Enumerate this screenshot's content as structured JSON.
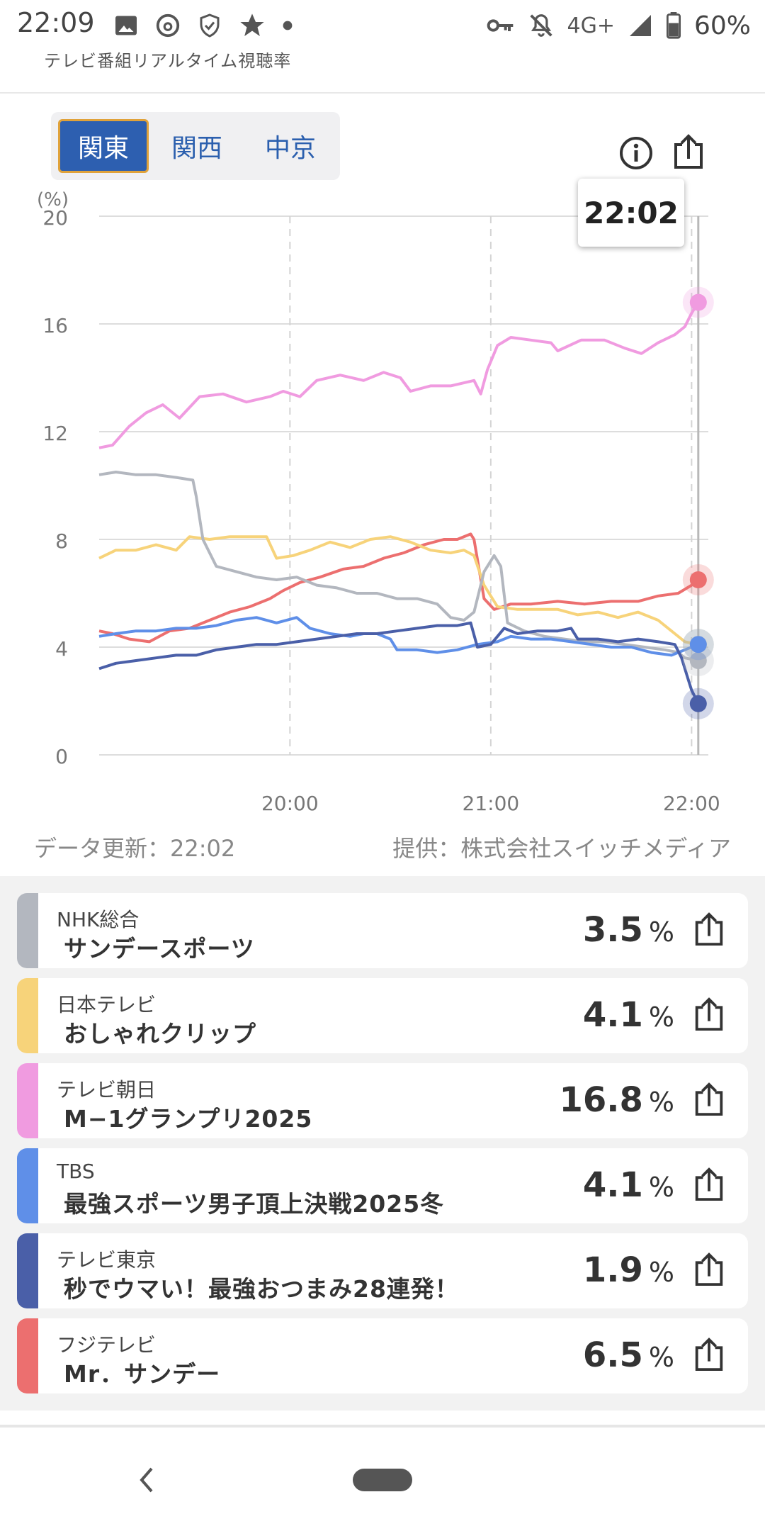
{
  "status_bar": {
    "time": "22:09",
    "icons": [
      "image-icon",
      "threads-icon",
      "shield-icon",
      "star-icon",
      "dot-icon"
    ],
    "network": "4G+",
    "battery": "60%"
  },
  "header": {
    "title": "テレビ番組リアルタイム視聴率"
  },
  "regions": {
    "items": [
      "関東",
      "関西",
      "中京"
    ],
    "selected": "関東"
  },
  "tooltip": {
    "time": "22:02"
  },
  "chart_data": {
    "type": "line",
    "ylabel": "(%)",
    "ylim": [
      0,
      20
    ],
    "y_ticks": [
      "0",
      "4",
      "8",
      "12",
      "16",
      "20"
    ],
    "x_ticks": [
      "20:00",
      "21:00",
      "22:00"
    ],
    "x_domain": [
      "19:03",
      "22:05"
    ],
    "grid": true,
    "series": [
      {
        "name": "テレビ朝日",
        "color": "#f09be0",
        "points": [
          [
            "19:03",
            11.4
          ],
          [
            "19:07",
            11.5
          ],
          [
            "19:12",
            12.2
          ],
          [
            "19:17",
            12.7
          ],
          [
            "19:22",
            13.0
          ],
          [
            "19:27",
            12.5
          ],
          [
            "19:33",
            13.3
          ],
          [
            "19:40",
            13.4
          ],
          [
            "19:47",
            13.1
          ],
          [
            "19:54",
            13.3
          ],
          [
            "19:58",
            13.5
          ],
          [
            "20:03",
            13.3
          ],
          [
            "20:08",
            13.9
          ],
          [
            "20:15",
            14.1
          ],
          [
            "20:22",
            13.9
          ],
          [
            "20:28",
            14.2
          ],
          [
            "20:33",
            14.0
          ],
          [
            "20:36",
            13.5
          ],
          [
            "20:42",
            13.7
          ],
          [
            "20:48",
            13.7
          ],
          [
            "20:55",
            13.9
          ],
          [
            "20:57",
            13.4
          ],
          [
            "20:59",
            14.3
          ],
          [
            "21:02",
            15.2
          ],
          [
            "21:06",
            15.5
          ],
          [
            "21:12",
            15.4
          ],
          [
            "21:18",
            15.3
          ],
          [
            "21:20",
            15.0
          ],
          [
            "21:27",
            15.4
          ],
          [
            "21:34",
            15.4
          ],
          [
            "21:40",
            15.1
          ],
          [
            "21:45",
            14.9
          ],
          [
            "21:50",
            15.3
          ],
          [
            "21:55",
            15.6
          ],
          [
            "21:58",
            15.9
          ],
          [
            "22:00",
            16.4
          ],
          [
            "22:02",
            16.8
          ]
        ]
      },
      {
        "name": "フジテレビ",
        "color": "#ec6f6f",
        "points": [
          [
            "19:03",
            4.6
          ],
          [
            "19:07",
            4.5
          ],
          [
            "19:12",
            4.3
          ],
          [
            "19:18",
            4.2
          ],
          [
            "19:24",
            4.6
          ],
          [
            "19:30",
            4.7
          ],
          [
            "19:36",
            5.0
          ],
          [
            "19:42",
            5.3
          ],
          [
            "19:48",
            5.5
          ],
          [
            "19:54",
            5.8
          ],
          [
            "19:58",
            6.1
          ],
          [
            "20:03",
            6.4
          ],
          [
            "20:09",
            6.6
          ],
          [
            "20:16",
            6.9
          ],
          [
            "20:22",
            7.0
          ],
          [
            "20:28",
            7.3
          ],
          [
            "20:34",
            7.5
          ],
          [
            "20:40",
            7.8
          ],
          [
            "20:46",
            8.0
          ],
          [
            "20:50",
            8.0
          ],
          [
            "20:54",
            8.2
          ],
          [
            "20:55",
            8.0
          ],
          [
            "20:58",
            5.8
          ],
          [
            "21:01",
            5.4
          ],
          [
            "21:06",
            5.6
          ],
          [
            "21:12",
            5.6
          ],
          [
            "21:20",
            5.7
          ],
          [
            "21:28",
            5.6
          ],
          [
            "21:36",
            5.7
          ],
          [
            "21:44",
            5.7
          ],
          [
            "21:50",
            5.9
          ],
          [
            "21:56",
            6.0
          ],
          [
            "22:00",
            6.3
          ],
          [
            "22:02",
            6.5
          ]
        ]
      },
      {
        "name": "日本テレビ",
        "color": "#f7d37a",
        "points": [
          [
            "19:03",
            7.3
          ],
          [
            "19:08",
            7.6
          ],
          [
            "19:14",
            7.6
          ],
          [
            "19:20",
            7.8
          ],
          [
            "19:26",
            7.6
          ],
          [
            "19:30",
            8.1
          ],
          [
            "19:36",
            8.0
          ],
          [
            "19:42",
            8.1
          ],
          [
            "19:48",
            8.1
          ],
          [
            "19:53",
            8.1
          ],
          [
            "19:56",
            7.3
          ],
          [
            "20:01",
            7.4
          ],
          [
            "20:06",
            7.6
          ],
          [
            "20:12",
            7.9
          ],
          [
            "20:18",
            7.7
          ],
          [
            "20:24",
            8.0
          ],
          [
            "20:30",
            8.1
          ],
          [
            "20:36",
            7.9
          ],
          [
            "20:42",
            7.6
          ],
          [
            "20:48",
            7.5
          ],
          [
            "20:52",
            7.6
          ],
          [
            "20:55",
            7.4
          ],
          [
            "20:58",
            6.3
          ],
          [
            "21:02",
            5.5
          ],
          [
            "21:08",
            5.4
          ],
          [
            "21:14",
            5.4
          ],
          [
            "21:20",
            5.4
          ],
          [
            "21:26",
            5.2
          ],
          [
            "21:32",
            5.3
          ],
          [
            "21:38",
            5.1
          ],
          [
            "21:44",
            5.3
          ],
          [
            "21:50",
            5.0
          ],
          [
            "21:55",
            4.5
          ],
          [
            "21:58",
            4.2
          ],
          [
            "22:02",
            4.1
          ]
        ]
      },
      {
        "name": "NHK総合",
        "color": "#b3b7bf",
        "points": [
          [
            "19:03",
            10.4
          ],
          [
            "19:08",
            10.5
          ],
          [
            "19:14",
            10.4
          ],
          [
            "19:20",
            10.4
          ],
          [
            "19:26",
            10.3
          ],
          [
            "19:31",
            10.2
          ],
          [
            "19:32",
            9.6
          ],
          [
            "19:34",
            8.0
          ],
          [
            "19:38",
            7.0
          ],
          [
            "19:44",
            6.8
          ],
          [
            "19:50",
            6.6
          ],
          [
            "19:56",
            6.5
          ],
          [
            "20:02",
            6.6
          ],
          [
            "20:08",
            6.3
          ],
          [
            "20:14",
            6.2
          ],
          [
            "20:20",
            6.0
          ],
          [
            "20:26",
            6.0
          ],
          [
            "20:32",
            5.8
          ],
          [
            "20:38",
            5.8
          ],
          [
            "20:44",
            5.6
          ],
          [
            "20:48",
            5.1
          ],
          [
            "20:52",
            5.0
          ],
          [
            "20:55",
            5.3
          ],
          [
            "20:58",
            6.8
          ],
          [
            "21:01",
            7.4
          ],
          [
            "21:03",
            7.0
          ],
          [
            "21:05",
            4.9
          ],
          [
            "21:10",
            4.6
          ],
          [
            "21:16",
            4.4
          ],
          [
            "21:22",
            4.3
          ],
          [
            "21:28",
            4.2
          ],
          [
            "21:34",
            4.2
          ],
          [
            "21:40",
            4.1
          ],
          [
            "21:46",
            4.0
          ],
          [
            "21:52",
            3.9
          ],
          [
            "21:56",
            3.8
          ],
          [
            "21:58",
            3.6
          ],
          [
            "22:02",
            3.5
          ]
        ]
      },
      {
        "name": "TBS",
        "color": "#5f8fe8",
        "points": [
          [
            "19:03",
            4.4
          ],
          [
            "19:08",
            4.5
          ],
          [
            "19:14",
            4.6
          ],
          [
            "19:20",
            4.6
          ],
          [
            "19:26",
            4.7
          ],
          [
            "19:32",
            4.7
          ],
          [
            "19:38",
            4.8
          ],
          [
            "19:44",
            5.0
          ],
          [
            "19:50",
            5.1
          ],
          [
            "19:56",
            4.9
          ],
          [
            "20:02",
            5.1
          ],
          [
            "20:06",
            4.7
          ],
          [
            "20:12",
            4.5
          ],
          [
            "20:18",
            4.4
          ],
          [
            "20:22",
            4.5
          ],
          [
            "20:26",
            4.5
          ],
          [
            "20:30",
            4.3
          ],
          [
            "20:32",
            3.9
          ],
          [
            "20:38",
            3.9
          ],
          [
            "20:44",
            3.8
          ],
          [
            "20:50",
            3.9
          ],
          [
            "20:56",
            4.1
          ],
          [
            "21:02",
            4.2
          ],
          [
            "21:06",
            4.4
          ],
          [
            "21:12",
            4.3
          ],
          [
            "21:18",
            4.3
          ],
          [
            "21:24",
            4.2
          ],
          [
            "21:30",
            4.1
          ],
          [
            "21:36",
            4.0
          ],
          [
            "21:42",
            4.0
          ],
          [
            "21:48",
            3.8
          ],
          [
            "21:54",
            3.7
          ],
          [
            "21:58",
            3.9
          ],
          [
            "22:02",
            4.1
          ]
        ]
      },
      {
        "name": "テレビ東京",
        "color": "#4a5fa8",
        "points": [
          [
            "19:03",
            3.2
          ],
          [
            "19:08",
            3.4
          ],
          [
            "19:14",
            3.5
          ],
          [
            "19:20",
            3.6
          ],
          [
            "19:26",
            3.7
          ],
          [
            "19:32",
            3.7
          ],
          [
            "19:38",
            3.9
          ],
          [
            "19:44",
            4.0
          ],
          [
            "19:50",
            4.1
          ],
          [
            "19:56",
            4.1
          ],
          [
            "20:02",
            4.2
          ],
          [
            "20:08",
            4.3
          ],
          [
            "20:14",
            4.4
          ],
          [
            "20:20",
            4.5
          ],
          [
            "20:26",
            4.5
          ],
          [
            "20:32",
            4.6
          ],
          [
            "20:38",
            4.7
          ],
          [
            "20:44",
            4.8
          ],
          [
            "20:50",
            4.8
          ],
          [
            "20:54",
            4.9
          ],
          [
            "20:56",
            4.0
          ],
          [
            "21:00",
            4.1
          ],
          [
            "21:04",
            4.7
          ],
          [
            "21:08",
            4.5
          ],
          [
            "21:14",
            4.6
          ],
          [
            "21:20",
            4.6
          ],
          [
            "21:24",
            4.7
          ],
          [
            "21:26",
            4.3
          ],
          [
            "21:32",
            4.3
          ],
          [
            "21:38",
            4.2
          ],
          [
            "21:44",
            4.3
          ],
          [
            "21:50",
            4.2
          ],
          [
            "21:55",
            4.1
          ],
          [
            "21:57",
            3.6
          ],
          [
            "21:59",
            2.8
          ],
          [
            "22:00",
            2.4
          ],
          [
            "22:02",
            1.9
          ]
        ]
      }
    ]
  },
  "footer": {
    "updated": "データ更新：22:02",
    "provider": "提供：株式会社スイッチメディア"
  },
  "ratings": [
    {
      "channel": "NHK総合",
      "program": "サンデースポーツ",
      "value": "3.5",
      "unit": "%",
      "color": "#b3b7bf"
    },
    {
      "channel": "日本テレビ",
      "program": "おしゃれクリップ",
      "value": "4.1",
      "unit": "%",
      "color": "#f7d37a"
    },
    {
      "channel": "テレビ朝日",
      "program": "M−1グランプリ2025",
      "value": "16.8",
      "unit": "%",
      "color": "#f09be0"
    },
    {
      "channel": "TBS",
      "program": "最強スポーツ男子頂上決戦2025冬",
      "value": "4.1",
      "unit": "%",
      "color": "#5f8fe8"
    },
    {
      "channel": "テレビ東京",
      "program": "秒でウマい！最強おつまみ28連発！",
      "value": "1.9",
      "unit": "%",
      "color": "#4a5fa8"
    },
    {
      "channel": "フジテレビ",
      "program": "Mr．サンデー",
      "value": "6.5",
      "unit": "%",
      "color": "#ec6f6f"
    }
  ]
}
